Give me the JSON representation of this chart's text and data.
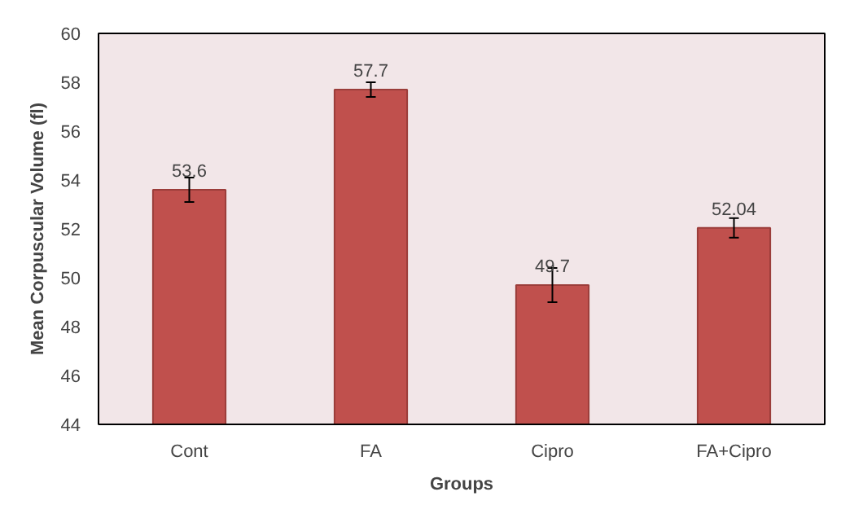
{
  "chart_data": {
    "type": "bar",
    "xlabel": "Groups",
    "ylabel": "Mean Corpuscular Volume (fl)",
    "categories": [
      "Cont",
      "FA",
      "Cipro",
      "FA+Cipro"
    ],
    "values": [
      53.6,
      57.7,
      49.7,
      52.04
    ],
    "errors": [
      0.5,
      0.3,
      0.7,
      0.4
    ],
    "color": "#c0504d",
    "ylim": [
      44,
      60
    ],
    "yticks": [
      44,
      46,
      48,
      50,
      52,
      54,
      56,
      58,
      60
    ],
    "data_labels": true,
    "grid": false
  }
}
